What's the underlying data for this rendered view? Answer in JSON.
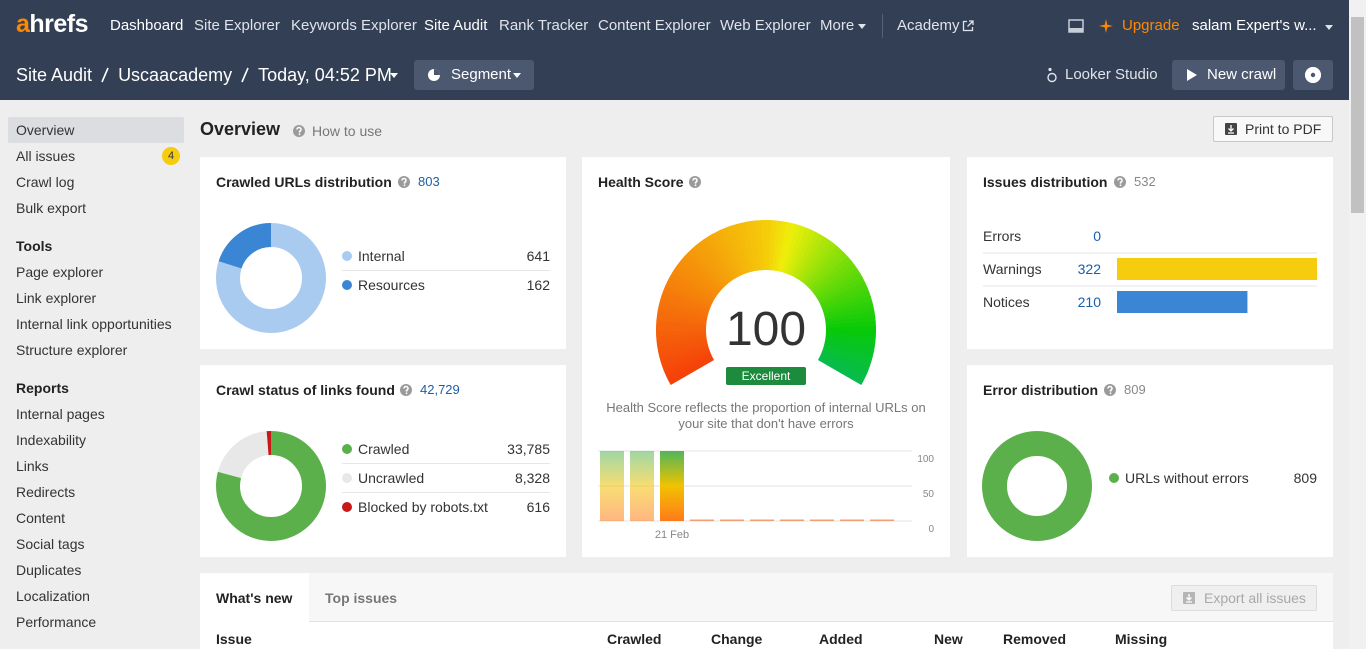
{
  "nav": {
    "logo": "ahrefs",
    "items": [
      "Dashboard",
      "Site Explorer",
      "Keywords Explorer",
      "Site Audit",
      "Rank Tracker",
      "Content Explorer",
      "Web Explorer",
      "More"
    ],
    "academy": "Academy",
    "upgrade": "Upgrade",
    "account": "salam Expert's w..."
  },
  "subheader": {
    "crumbs": [
      "Site Audit",
      "Uscaacademy",
      "Today, 04:52 PM"
    ],
    "segment": "Segment",
    "looker": "Looker Studio",
    "new_crawl": "New crawl"
  },
  "sidebar": {
    "top": [
      "Overview",
      "All issues",
      "Crawl log",
      "Bulk export"
    ],
    "all_issues_count": 4,
    "tools_heading": "Tools",
    "tools": [
      "Page explorer",
      "Link explorer",
      "Internal link opportunities",
      "Structure explorer"
    ],
    "reports_heading": "Reports",
    "reports": [
      "Internal pages",
      "Indexability",
      "Links",
      "Redirects",
      "Content",
      "Social tags",
      "Duplicates",
      "Localization",
      "Performance"
    ]
  },
  "page": {
    "title": "Overview",
    "help": "How to use",
    "print": "Print to PDF"
  },
  "crawled_urls": {
    "type": "donut",
    "title": "Crawled URLs distribution",
    "total": 803,
    "categories": [
      "Internal",
      "Resources"
    ],
    "values": [
      641,
      162
    ],
    "colors": [
      "#a9cbef",
      "#3b86d4"
    ]
  },
  "crawl_status": {
    "type": "donut",
    "title": "Crawl status of links found",
    "total": {
      "value": 42729,
      "label": "42,729"
    },
    "categories": [
      "Crawled",
      "Uncrawled",
      "Blocked by robots.txt"
    ],
    "values": [
      33785,
      8328,
      616
    ],
    "value_labels": [
      "33,785",
      "8,328",
      "616"
    ],
    "colors": [
      "#5cb04b",
      "#e8e8e8",
      "#c81818"
    ]
  },
  "health_score": {
    "type": "gauge",
    "title": "Health Score",
    "score": 100,
    "rating": "Excellent",
    "description": "Health Score reflects the proportion of internal URLs on your site that don't have errors",
    "history": {
      "type": "bar",
      "categories": [
        null,
        null,
        "21 Feb",
        null,
        null,
        null,
        null,
        null,
        null,
        null
      ],
      "values": [
        100,
        100,
        100,
        0,
        0,
        0,
        0,
        0,
        0,
        0
      ],
      "ylim": [
        0,
        100
      ],
      "yticks": [
        0,
        50,
        100
      ],
      "grid": true
    }
  },
  "issues": {
    "type": "hbar",
    "title": "Issues distribution",
    "total": 532,
    "categories": [
      "Errors",
      "Warnings",
      "Notices"
    ],
    "values": [
      0,
      322,
      210
    ],
    "colors": [
      "#d9342b",
      "#f5cc0e",
      "#3b86d4"
    ]
  },
  "error_distribution": {
    "type": "donut",
    "title": "Error distribution",
    "total": 809,
    "categories": [
      "URLs without errors"
    ],
    "values": [
      809
    ],
    "colors": [
      "#5cb04b"
    ]
  },
  "table": {
    "tabs": [
      "What's new",
      "Top issues"
    ],
    "export": "Export all issues",
    "columns": [
      "Issue",
      "Crawled",
      "Change",
      "Added",
      "New",
      "Removed",
      "Missing"
    ]
  }
}
